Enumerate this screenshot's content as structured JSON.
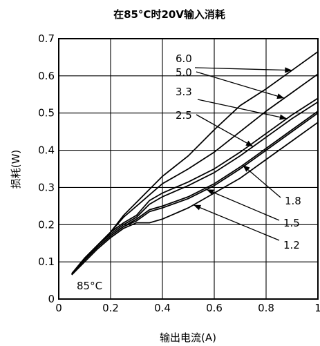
{
  "chart_data": {
    "type": "line",
    "title": "在85°C时20V输入消耗",
    "xlabel": "输出电流(A)",
    "ylabel": "损耗(W)",
    "xlim": [
      0,
      1
    ],
    "ylim": [
      0,
      0.7
    ],
    "x_ticks": [
      "0",
      "0.2",
      "0.4",
      "0.6",
      "0.8",
      "1"
    ],
    "y_ticks": [
      "0",
      "0.1",
      "0.2",
      "0.3",
      "0.4",
      "0.5",
      "0.6",
      "0.7"
    ],
    "grid": true,
    "annotation": "85°C",
    "series": [
      {
        "name": "6.0",
        "points": [
          [
            0.05,
            0.068
          ],
          [
            0.1,
            0.11
          ],
          [
            0.15,
            0.145
          ],
          [
            0.2,
            0.18
          ],
          [
            0.25,
            0.225
          ],
          [
            0.3,
            0.26
          ],
          [
            0.4,
            0.33
          ],
          [
            0.5,
            0.385
          ],
          [
            0.6,
            0.455
          ],
          [
            0.7,
            0.52
          ],
          [
            0.8,
            0.565
          ],
          [
            0.9,
            0.615
          ],
          [
            1.0,
            0.665
          ]
        ]
      },
      {
        "name": "5.0",
        "points": [
          [
            0.05,
            0.068
          ],
          [
            0.1,
            0.11
          ],
          [
            0.15,
            0.145
          ],
          [
            0.2,
            0.18
          ],
          [
            0.25,
            0.22
          ],
          [
            0.3,
            0.25
          ],
          [
            0.4,
            0.31
          ],
          [
            0.5,
            0.35
          ],
          [
            0.6,
            0.395
          ],
          [
            0.7,
            0.45
          ],
          [
            0.8,
            0.505
          ],
          [
            0.9,
            0.555
          ],
          [
            1.0,
            0.605
          ]
        ]
      },
      {
        "name": "3.3",
        "points": [
          [
            0.05,
            0.068
          ],
          [
            0.1,
            0.11
          ],
          [
            0.15,
            0.145
          ],
          [
            0.2,
            0.18
          ],
          [
            0.25,
            0.205
          ],
          [
            0.3,
            0.225
          ],
          [
            0.35,
            0.265
          ],
          [
            0.4,
            0.285
          ],
          [
            0.5,
            0.315
          ],
          [
            0.6,
            0.35
          ],
          [
            0.7,
            0.395
          ],
          [
            0.8,
            0.445
          ],
          [
            0.9,
            0.495
          ],
          [
            1.0,
            0.54
          ]
        ]
      },
      {
        "name": "2.5",
        "points": [
          [
            0.05,
            0.068
          ],
          [
            0.1,
            0.11
          ],
          [
            0.15,
            0.145
          ],
          [
            0.2,
            0.175
          ],
          [
            0.25,
            0.2
          ],
          [
            0.3,
            0.22
          ],
          [
            0.35,
            0.255
          ],
          [
            0.4,
            0.275
          ],
          [
            0.5,
            0.305
          ],
          [
            0.6,
            0.34
          ],
          [
            0.7,
            0.385
          ],
          [
            0.8,
            0.435
          ],
          [
            0.9,
            0.485
          ],
          [
            1.0,
            0.53
          ]
        ]
      },
      {
        "name": "1.8",
        "points": [
          [
            0.05,
            0.068
          ],
          [
            0.1,
            0.105
          ],
          [
            0.15,
            0.14
          ],
          [
            0.2,
            0.17
          ],
          [
            0.25,
            0.195
          ],
          [
            0.3,
            0.215
          ],
          [
            0.35,
            0.24
          ],
          [
            0.4,
            0.25
          ],
          [
            0.5,
            0.275
          ],
          [
            0.6,
            0.31
          ],
          [
            0.7,
            0.355
          ],
          [
            0.8,
            0.405
          ],
          [
            0.9,
            0.455
          ],
          [
            1.0,
            0.505
          ]
        ]
      },
      {
        "name": "1.5",
        "points": [
          [
            0.05,
            0.068
          ],
          [
            0.1,
            0.105
          ],
          [
            0.15,
            0.14
          ],
          [
            0.2,
            0.17
          ],
          [
            0.25,
            0.195
          ],
          [
            0.3,
            0.21
          ],
          [
            0.35,
            0.235
          ],
          [
            0.4,
            0.245
          ],
          [
            0.5,
            0.27
          ],
          [
            0.6,
            0.305
          ],
          [
            0.7,
            0.35
          ],
          [
            0.8,
            0.4
          ],
          [
            0.9,
            0.45
          ],
          [
            1.0,
            0.5
          ]
        ]
      },
      {
        "name": "1.2",
        "points": [
          [
            0.05,
            0.065
          ],
          [
            0.1,
            0.1
          ],
          [
            0.15,
            0.135
          ],
          [
            0.2,
            0.165
          ],
          [
            0.25,
            0.19
          ],
          [
            0.3,
            0.205
          ],
          [
            0.35,
            0.205
          ],
          [
            0.4,
            0.215
          ],
          [
            0.5,
            0.245
          ],
          [
            0.6,
            0.285
          ],
          [
            0.7,
            0.325
          ],
          [
            0.8,
            0.375
          ],
          [
            0.9,
            0.425
          ],
          [
            1.0,
            0.475
          ]
        ]
      }
    ]
  }
}
